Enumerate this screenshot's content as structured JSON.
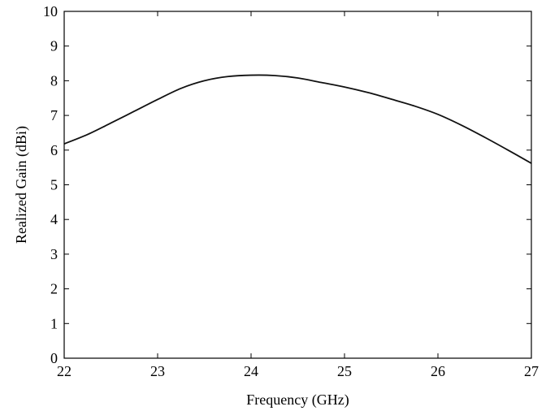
{
  "chart_data": {
    "type": "line",
    "title": "",
    "xlabel": "Frequency (GHz)",
    "ylabel": "Realized Gain (dBi)",
    "xlim": [
      22,
      27
    ],
    "ylim": [
      0,
      10
    ],
    "x_ticks": [
      22,
      23,
      24,
      25,
      26,
      27
    ],
    "y_ticks": [
      0,
      1,
      2,
      3,
      4,
      5,
      6,
      7,
      8,
      9,
      10
    ],
    "grid": false,
    "legend": "none",
    "series": [
      {
        "color": "#111111",
        "x": [
          22,
          22.25,
          22.5,
          22.75,
          23,
          23.25,
          23.5,
          23.75,
          24,
          24.25,
          24.5,
          24.75,
          25,
          25.25,
          25.5,
          25.75,
          26,
          26.25,
          26.5,
          26.75,
          27
        ],
        "y": [
          6.18,
          6.45,
          6.78,
          7.12,
          7.46,
          7.78,
          8.0,
          8.12,
          8.16,
          8.15,
          8.08,
          7.95,
          7.82,
          7.66,
          7.47,
          7.27,
          7.03,
          6.72,
          6.37,
          6.0,
          5.62
        ]
      }
    ]
  }
}
